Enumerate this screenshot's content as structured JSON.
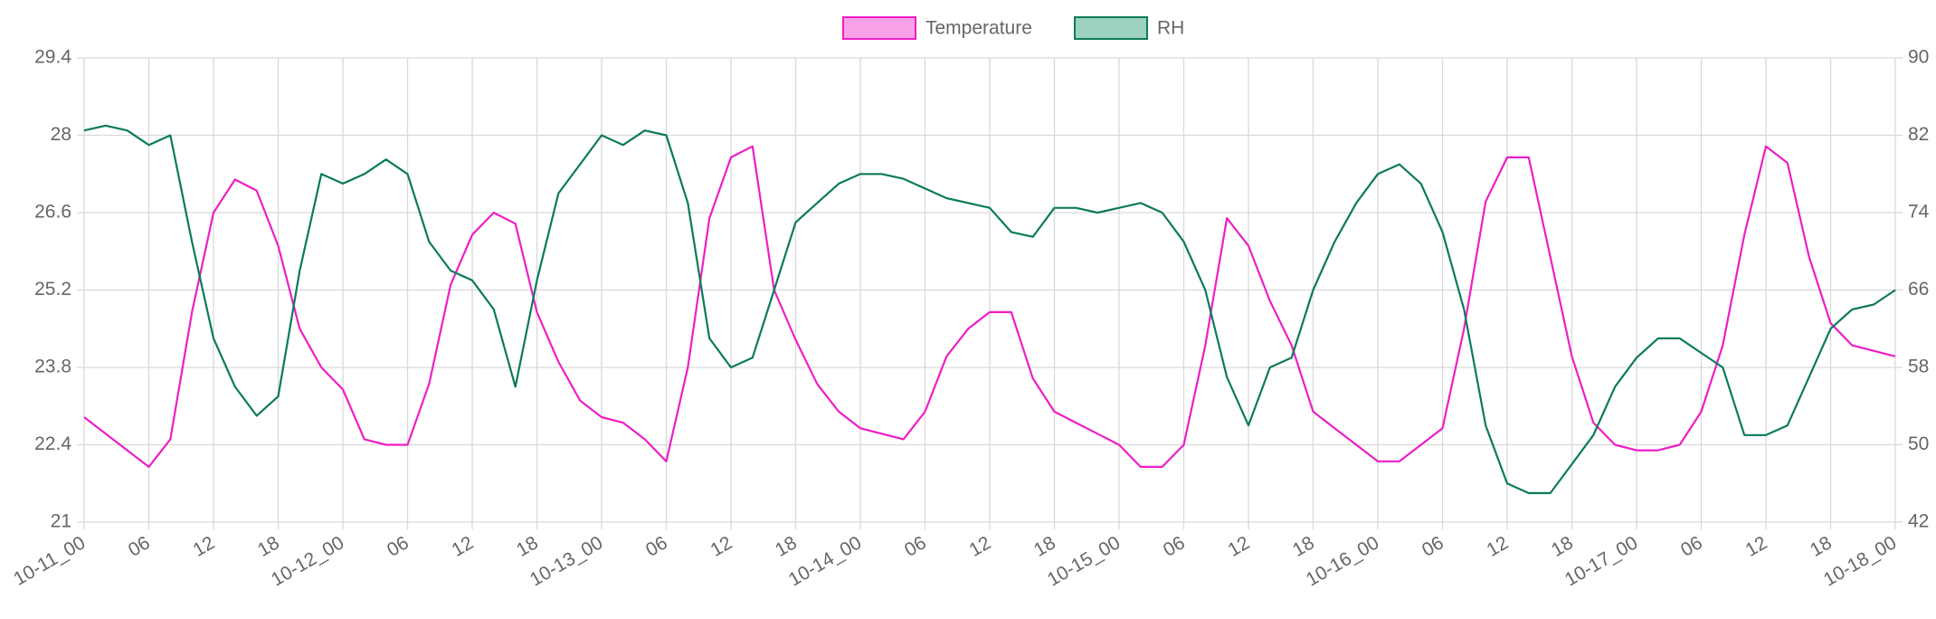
{
  "chart_data": {
    "type": "line",
    "x": [
      0,
      2,
      4,
      6,
      8,
      10,
      12,
      14,
      16,
      18,
      20,
      22,
      24,
      26,
      28,
      30,
      32,
      34,
      36,
      38,
      40,
      42,
      44,
      46,
      48,
      50,
      52,
      54,
      56,
      58,
      60,
      62,
      64,
      66,
      68,
      70,
      72,
      74,
      76,
      78,
      80,
      82,
      84,
      86,
      88,
      90,
      92,
      94,
      96,
      98,
      100,
      102,
      104,
      106,
      108,
      110,
      112,
      114,
      116,
      118,
      120,
      122,
      124,
      126,
      128,
      130,
      132,
      134,
      136,
      138,
      140,
      142,
      144,
      146,
      148,
      150,
      152,
      154,
      156,
      158,
      160,
      162,
      164,
      166,
      168
    ],
    "xlim": [
      0,
      168
    ],
    "xticks": [
      {
        "value": 0,
        "label": "10-11_00"
      },
      {
        "value": 6,
        "label": "06"
      },
      {
        "value": 12,
        "label": "12"
      },
      {
        "value": 18,
        "label": "18"
      },
      {
        "value": 24,
        "label": "10-12_00"
      },
      {
        "value": 30,
        "label": "06"
      },
      {
        "value": 36,
        "label": "12"
      },
      {
        "value": 42,
        "label": "18"
      },
      {
        "value": 48,
        "label": "10-13_00"
      },
      {
        "value": 54,
        "label": "06"
      },
      {
        "value": 60,
        "label": "12"
      },
      {
        "value": 66,
        "label": "18"
      },
      {
        "value": 72,
        "label": "10-14_00"
      },
      {
        "value": 78,
        "label": "06"
      },
      {
        "value": 84,
        "label": "12"
      },
      {
        "value": 90,
        "label": "18"
      },
      {
        "value": 96,
        "label": "10-15_00"
      },
      {
        "value": 102,
        "label": "06"
      },
      {
        "value": 108,
        "label": "12"
      },
      {
        "value": 114,
        "label": "18"
      },
      {
        "value": 120,
        "label": "10-16_00"
      },
      {
        "value": 126,
        "label": "06"
      },
      {
        "value": 132,
        "label": "12"
      },
      {
        "value": 138,
        "label": "18"
      },
      {
        "value": 144,
        "label": "10-17_00"
      },
      {
        "value": 150,
        "label": "06"
      },
      {
        "value": 156,
        "label": "12"
      },
      {
        "value": 162,
        "label": "18"
      },
      {
        "value": 168,
        "label": "10-18_00"
      }
    ],
    "ylim": [
      21,
      29.4
    ],
    "yticks": [
      21,
      22.4,
      23.8,
      25.2,
      26.6,
      28,
      29.4
    ],
    "y2lim": [
      42,
      90
    ],
    "y2ticks": [
      42,
      50,
      58,
      66,
      74,
      82,
      90
    ],
    "grid": true,
    "legend": "top",
    "series": [
      {
        "name": "Temperature",
        "color": "#ee1ec6",
        "fill": "#f9a1e6",
        "values": [
          22.9,
          22.6,
          22.3,
          22.0,
          22.5,
          24.8,
          26.6,
          27.2,
          27.0,
          26.0,
          24.5,
          23.8,
          23.4,
          22.5,
          22.4,
          22.4,
          23.5,
          25.3,
          26.2,
          26.6,
          26.4,
          24.8,
          23.9,
          23.2,
          22.9,
          22.8,
          22.5,
          22.1,
          23.8,
          26.5,
          27.6,
          27.8,
          25.2,
          24.3,
          23.5,
          23.0,
          22.7,
          22.6,
          22.5,
          23.0,
          24.0,
          24.5,
          24.8,
          24.8,
          23.6,
          23.0,
          22.8,
          22.6,
          22.4,
          22.0,
          22.0,
          22.4,
          24.2,
          26.5,
          26.0,
          25.0,
          24.2,
          23.0,
          22.7,
          22.4,
          22.1,
          22.1,
          22.4,
          22.7,
          24.5,
          26.8,
          27.6,
          27.6,
          25.8,
          24.0,
          22.8,
          22.4,
          22.3,
          22.3,
          22.4,
          23.0,
          24.2,
          26.2,
          27.8,
          27.5,
          25.8,
          24.6,
          24.2,
          24.1,
          24.0
        ]
      },
      {
        "name": "RH",
        "color": "#0b7a5c",
        "fill": "#9dd1bf",
        "axis": "y2",
        "values": [
          82.5,
          83,
          82.5,
          81,
          82,
          71,
          61,
          56,
          53,
          55,
          68,
          78,
          77,
          78,
          79.5,
          78,
          71,
          68,
          67,
          64,
          56,
          67,
          76,
          79,
          82,
          81,
          82.5,
          82,
          75,
          61,
          58,
          59,
          66,
          73,
          75,
          77,
          78,
          78,
          77.5,
          76.5,
          75.5,
          75,
          74.5,
          72,
          71.5,
          74.5,
          74.5,
          74,
          74.5,
          75,
          74,
          71,
          66,
          57,
          52,
          58,
          59,
          66,
          71,
          75,
          78,
          79,
          77,
          72,
          64,
          52,
          46,
          45,
          45,
          48,
          51,
          56,
          59,
          61,
          61,
          59.5,
          58,
          51,
          51,
          52,
          57,
          62,
          64,
          64.5,
          66
        ]
      }
    ]
  }
}
